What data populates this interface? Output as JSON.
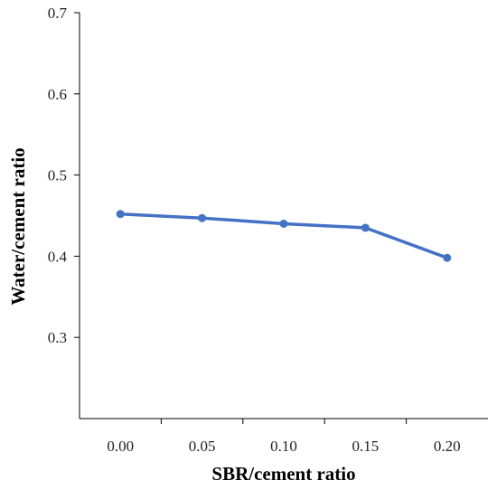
{
  "chart_data": {
    "type": "line",
    "xlabel": "SBR/cement ratio",
    "ylabel": "Water/cement ratio",
    "x": [
      "0.00",
      "0.05",
      "0.10",
      "0.15",
      "0.20"
    ],
    "series": [
      {
        "values": [
          0.452,
          0.447,
          0.44,
          0.435,
          0.398
        ],
        "color": "#4472c4"
      }
    ],
    "ylim": [
      0.2,
      0.7
    ],
    "yticks": [
      "0.3",
      "0.4",
      "0.5",
      "0.6",
      "0.7"
    ],
    "grid": false,
    "legend": "none"
  }
}
